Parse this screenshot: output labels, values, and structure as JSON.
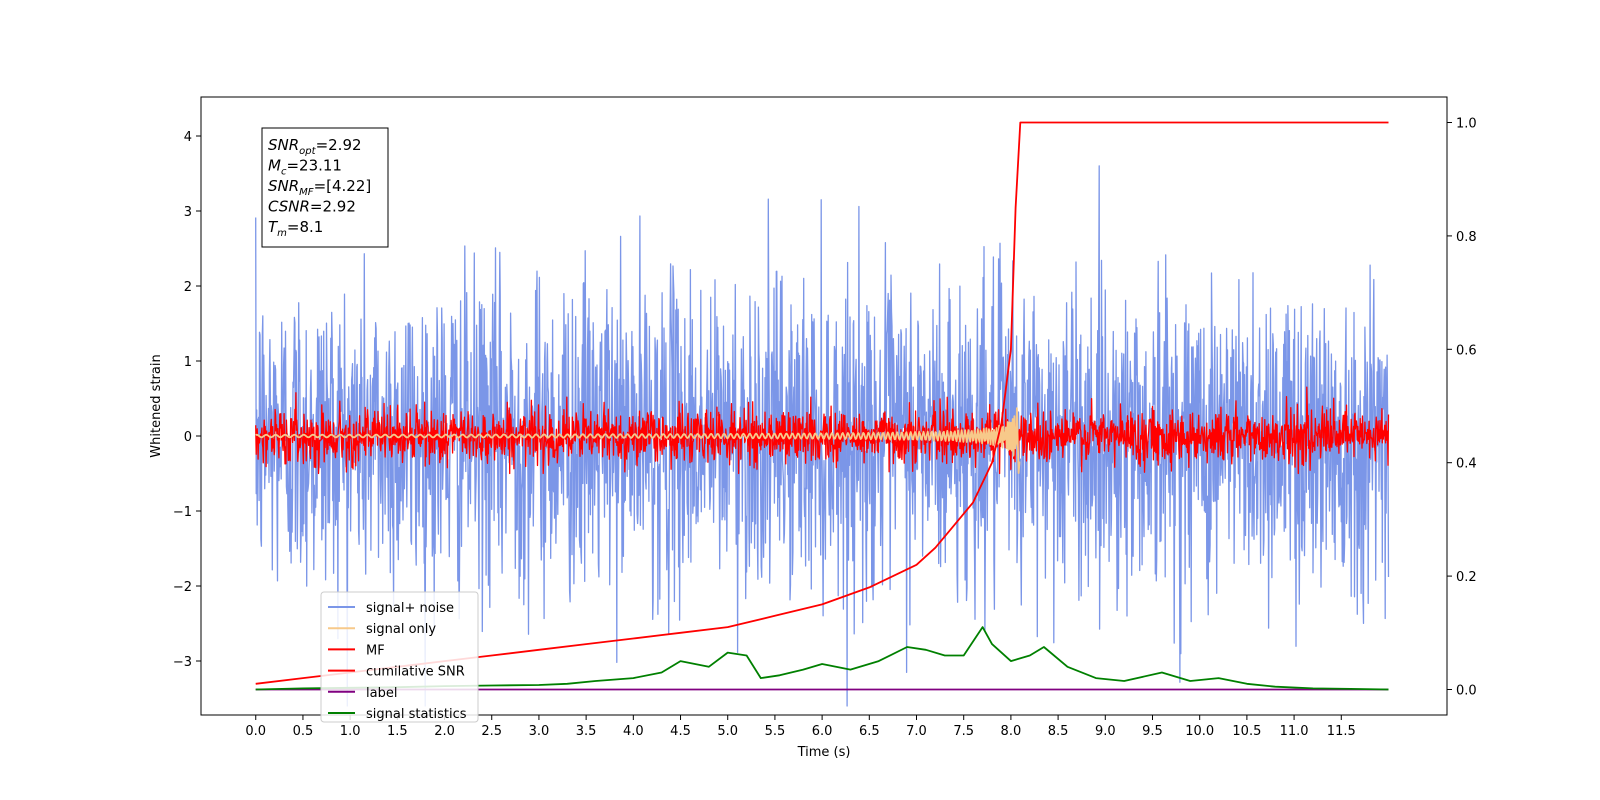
{
  "chart_data": {
    "type": "line",
    "xlabel": "Time (s)",
    "ylabel": "Whitened strain",
    "xlim": [
      -0.58,
      12.62
    ],
    "ylim": [
      -3.72,
      4.52
    ],
    "ylim_right": [
      -0.045,
      1.045
    ],
    "x_ticks": [
      "0.0",
      "0.5",
      "1.0",
      "1.5",
      "2.0",
      "2.5",
      "3.0",
      "3.5",
      "4.0",
      "4.5",
      "5.0",
      "5.5",
      "6.0",
      "6.5",
      "7.0",
      "7.5",
      "8.0",
      "8.5",
      "9.0",
      "9.5",
      "10.0",
      "10.5",
      "11.0",
      "11.5"
    ],
    "y_ticks_left": [
      "4",
      "3",
      "2",
      "1",
      "0",
      "−1",
      "−2",
      "−3"
    ],
    "y_ticks_left_values": [
      4,
      3,
      2,
      1,
      0,
      -1,
      -2,
      -3
    ],
    "y_ticks_right": [
      "1.0",
      "0.8",
      "0.6",
      "0.4",
      "0.2",
      "0.0"
    ],
    "y_ticks_right_values": [
      1.0,
      0.8,
      0.6,
      0.4,
      0.2,
      0.0
    ],
    "grid": false,
    "legend_position": "lower-left",
    "annotation_box": {
      "lines": [
        {
          "base": "SNR",
          "sub": "opt",
          "value": "=2.92"
        },
        {
          "base": "M",
          "sub": "c",
          "value": "=23.11"
        },
        {
          "base": "SNR",
          "sub": "MF",
          "value": "=[4.22]"
        },
        {
          "base": "CSNR",
          "sub": "",
          "value": "=2.92"
        },
        {
          "base": "T",
          "sub": "m",
          "value": "=8.1"
        }
      ]
    },
    "series": [
      {
        "name": "signal+ noise",
        "color": "#7b96e8",
        "axis": "left",
        "kind": "noise",
        "t_start": 0.0,
        "t_end": 12.0,
        "std": 1.0
      },
      {
        "name": "signal only",
        "color": "#f7c98a",
        "axis": "left",
        "kind": "chirp",
        "t_start": 0.0,
        "t_end": 8.1
      },
      {
        "name": "MF",
        "color": "#ff0000",
        "axis": "left",
        "kind": "noise",
        "t_start": 0.0,
        "t_end": 12.0,
        "std": 0.18
      },
      {
        "name": "cumilative SNR",
        "color": "#ff0000",
        "axis": "right",
        "x": [
          0.0,
          0.5,
          1.0,
          1.5,
          2.0,
          2.5,
          3.0,
          3.5,
          4.0,
          4.5,
          5.0,
          5.5,
          6.0,
          6.5,
          7.0,
          7.2,
          7.4,
          7.6,
          7.8,
          7.9,
          8.0,
          8.05,
          8.1,
          9.0,
          10.0,
          11.0,
          12.0
        ],
        "y": [
          0.01,
          0.02,
          0.03,
          0.04,
          0.05,
          0.06,
          0.07,
          0.08,
          0.09,
          0.1,
          0.11,
          0.13,
          0.15,
          0.18,
          0.22,
          0.25,
          0.29,
          0.33,
          0.4,
          0.47,
          0.6,
          0.85,
          1.0,
          1.0,
          1.0,
          1.0,
          1.0
        ]
      },
      {
        "name": "label",
        "color": "#800080",
        "axis": "right",
        "x": [
          0.0,
          12.0
        ],
        "y": [
          0.0,
          0.0
        ]
      },
      {
        "name": "signal statistics",
        "color": "#008000",
        "axis": "right",
        "x": [
          0.0,
          0.5,
          1.0,
          1.5,
          2.0,
          2.5,
          3.0,
          3.3,
          3.6,
          4.0,
          4.3,
          4.5,
          4.8,
          5.0,
          5.2,
          5.35,
          5.55,
          5.8,
          6.0,
          6.3,
          6.6,
          6.9,
          7.1,
          7.3,
          7.5,
          7.7,
          7.8,
          8.0,
          8.2,
          8.35,
          8.6,
          8.9,
          9.2,
          9.6,
          9.9,
          10.2,
          10.5,
          10.8,
          11.2,
          11.6,
          12.0
        ],
        "y": [
          0.0,
          0.002,
          0.003,
          0.004,
          0.006,
          0.007,
          0.008,
          0.01,
          0.015,
          0.02,
          0.03,
          0.05,
          0.04,
          0.065,
          0.06,
          0.02,
          0.025,
          0.035,
          0.045,
          0.035,
          0.05,
          0.075,
          0.07,
          0.06,
          0.06,
          0.11,
          0.08,
          0.05,
          0.06,
          0.075,
          0.04,
          0.02,
          0.015,
          0.03,
          0.015,
          0.02,
          0.01,
          0.005,
          0.002,
          0.001,
          0.0
        ]
      }
    ]
  }
}
